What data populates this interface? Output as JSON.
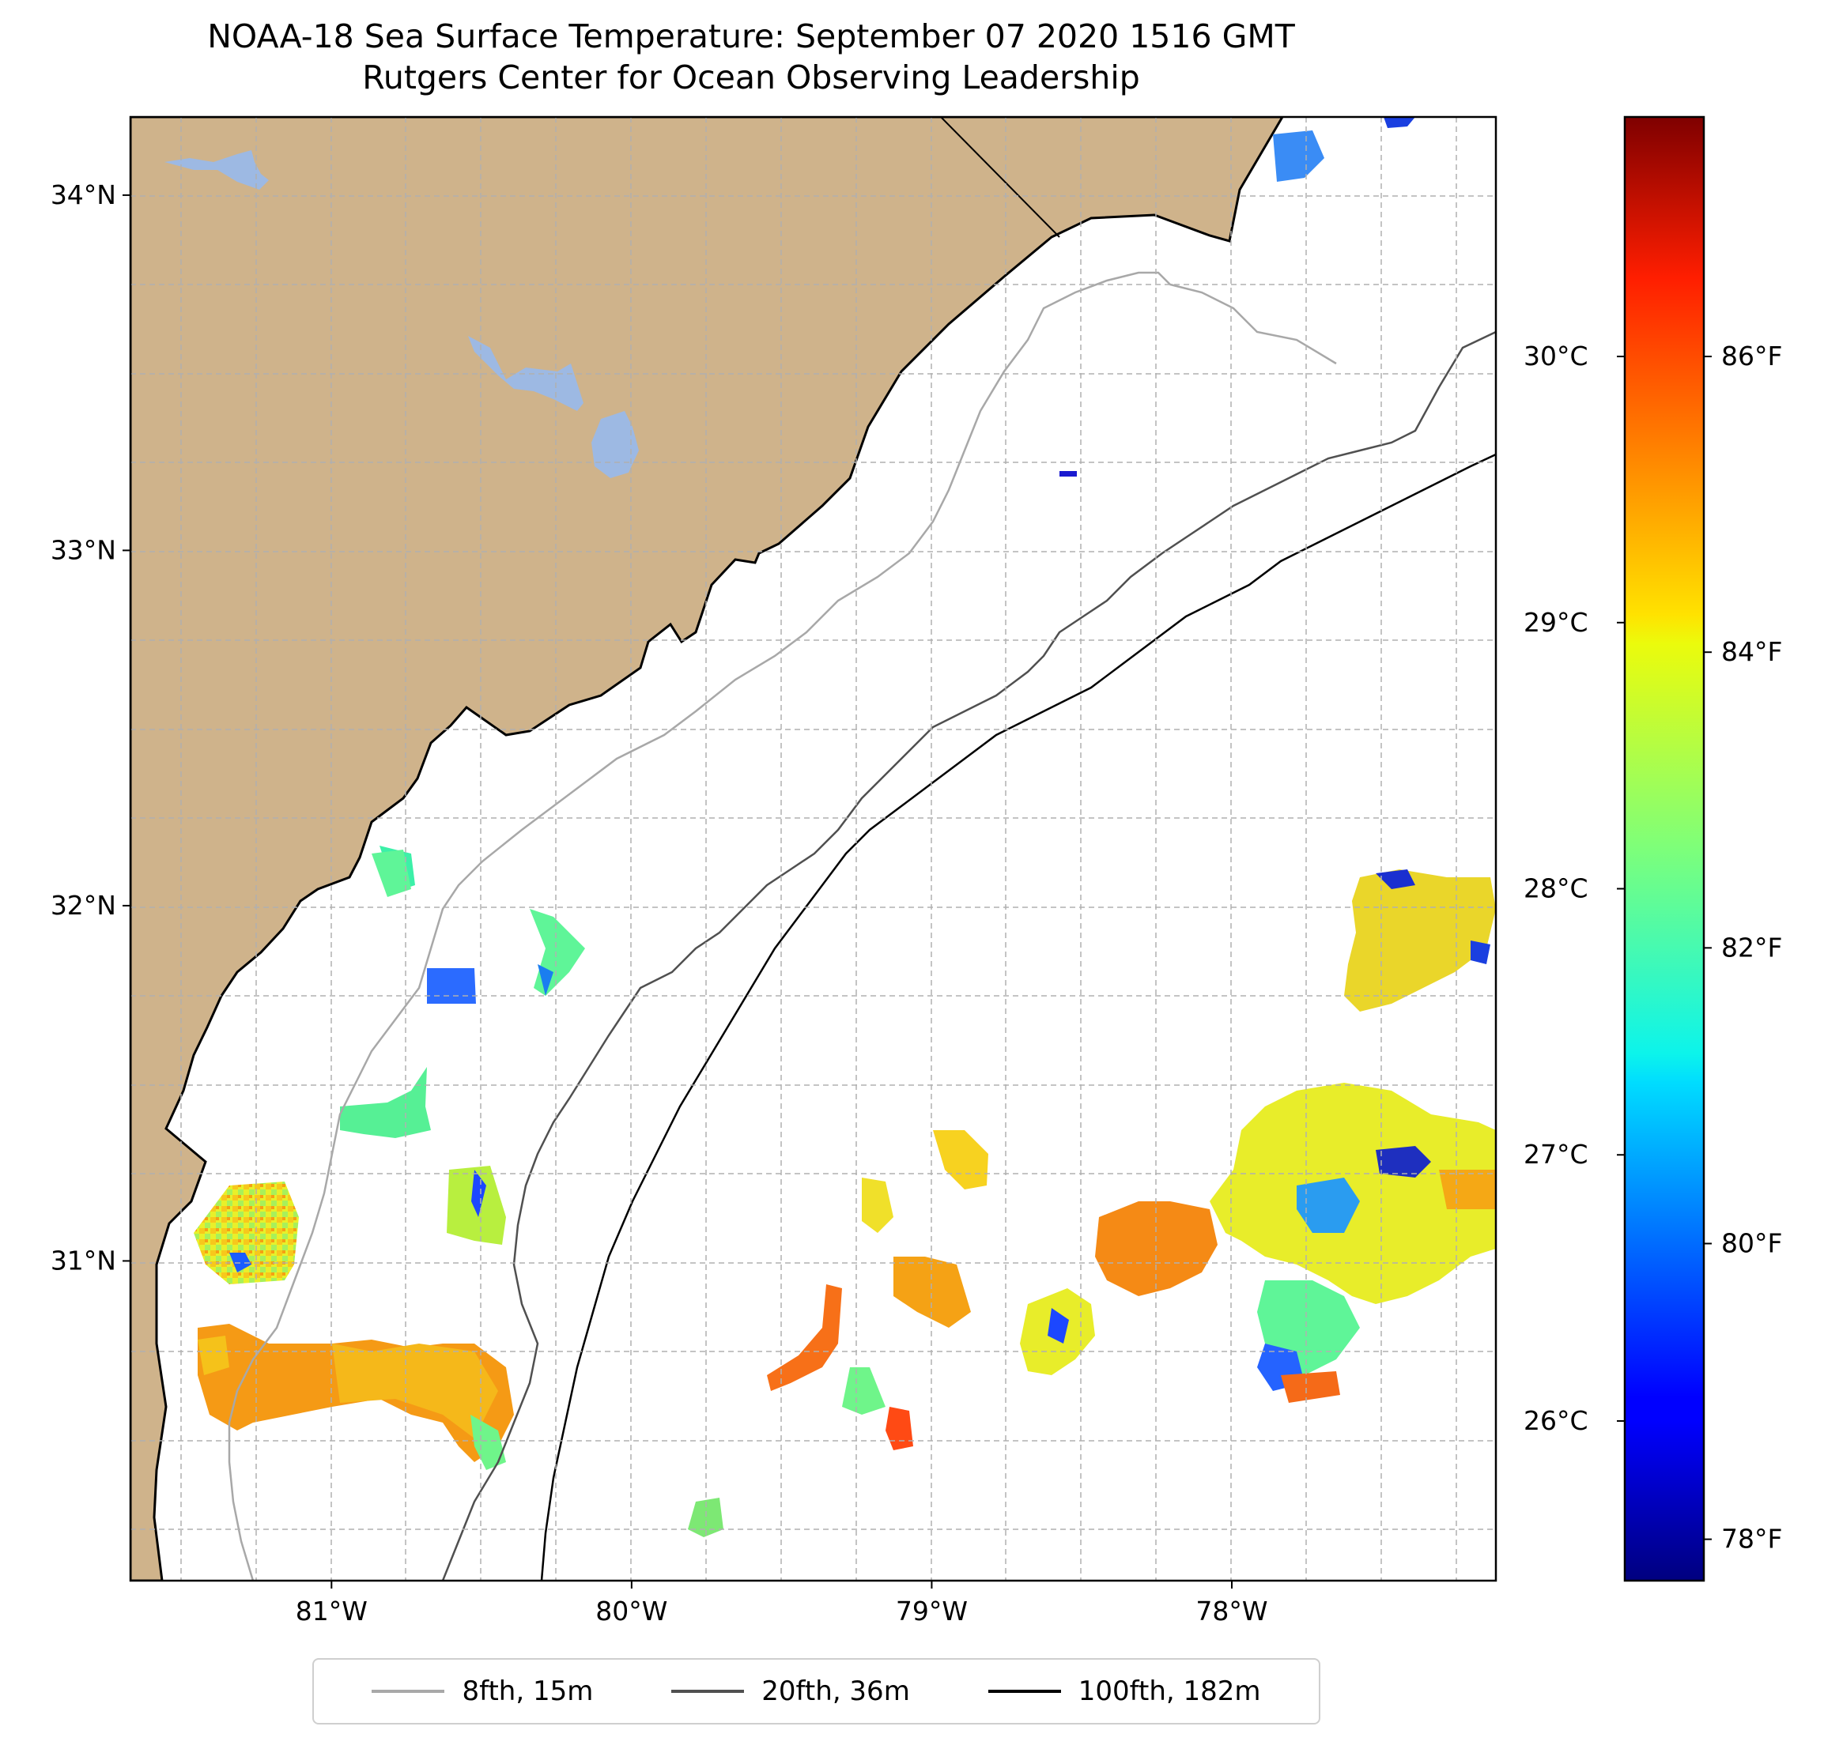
{
  "title": {
    "line1": "NOAA-18 Sea Surface Temperature: September 07 2020 1516 GMT",
    "line2": "Rutgers Center for Ocean Observing Leadership"
  },
  "map": {
    "lon_range": [
      -81.67,
      -77.12
    ],
    "lat_range": [
      30.1,
      34.22
    ],
    "land_color": "#cfb38b",
    "water_color": "#ffffff",
    "lake_color": "#9db9e3",
    "gridlines": true,
    "lon_ticks": [
      {
        "value": -81,
        "label": "81°W"
      },
      {
        "value": -80,
        "label": "80°W"
      },
      {
        "value": -79,
        "label": "79°W"
      },
      {
        "value": -78,
        "label": "78°W"
      }
    ],
    "lat_ticks": [
      {
        "value": 31,
        "label": "31°N"
      },
      {
        "value": 32,
        "label": "32°N"
      },
      {
        "value": 33,
        "label": "33°N"
      },
      {
        "value": 34,
        "label": "34°N"
      }
    ]
  },
  "colorbar": {
    "colormap": "jet",
    "range_c": [
      25.4,
      30.9
    ],
    "celsius_ticks": [
      {
        "value": 26,
        "label": "26°C"
      },
      {
        "value": 27,
        "label": "27°C"
      },
      {
        "value": 28,
        "label": "28°C"
      },
      {
        "value": 29,
        "label": "29°C"
      },
      {
        "value": 30,
        "label": "30°C"
      }
    ],
    "fahrenheit_ticks": [
      {
        "value": 78,
        "label": "78°F"
      },
      {
        "value": 80,
        "label": "80°F"
      },
      {
        "value": 82,
        "label": "82°F"
      },
      {
        "value": 84,
        "label": "84°F"
      },
      {
        "value": 86,
        "label": "86°F"
      }
    ]
  },
  "legend": {
    "entries": [
      {
        "label": "8fth, 15m",
        "color": "#a8a8a8"
      },
      {
        "label": "20fth, 36m",
        "color": "#505050"
      },
      {
        "label": "100fth, 182m",
        "color": "#000000"
      }
    ]
  }
}
